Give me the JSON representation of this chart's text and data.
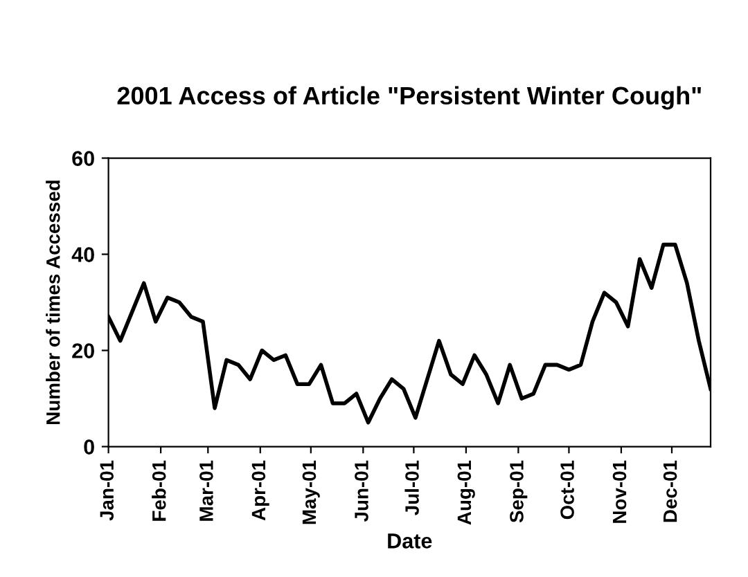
{
  "chart_data": {
    "type": "line",
    "title": "2001 Access of Article \"Persistent Winter Cough\"",
    "xlabel": "Date",
    "ylabel": "Number of times Accessed",
    "x": [
      "2001-01-01",
      "2001-01-08",
      "2001-01-15",
      "2001-01-22",
      "2001-01-29",
      "2001-02-05",
      "2001-02-12",
      "2001-02-19",
      "2001-02-26",
      "2001-03-05",
      "2001-03-12",
      "2001-03-19",
      "2001-03-26",
      "2001-04-02",
      "2001-04-09",
      "2001-04-16",
      "2001-04-23",
      "2001-04-30",
      "2001-05-07",
      "2001-05-14",
      "2001-05-21",
      "2001-05-28",
      "2001-06-04",
      "2001-06-11",
      "2001-06-18",
      "2001-06-25",
      "2001-07-02",
      "2001-07-09",
      "2001-07-16",
      "2001-07-23",
      "2001-07-30",
      "2001-08-06",
      "2001-08-13",
      "2001-08-20",
      "2001-08-27",
      "2001-09-03",
      "2001-09-10",
      "2001-09-17",
      "2001-09-24",
      "2001-10-01",
      "2001-10-08",
      "2001-10-15",
      "2001-10-22",
      "2001-10-29",
      "2001-11-05",
      "2001-11-12",
      "2001-11-19",
      "2001-11-26",
      "2001-12-03",
      "2001-12-10",
      "2001-12-17",
      "2001-12-24"
    ],
    "series": [
      {
        "color": "#000000",
        "values": [
          27,
          22,
          28,
          34,
          26,
          31,
          30,
          27,
          26,
          8,
          18,
          17,
          14,
          20,
          18,
          19,
          13,
          13,
          17,
          9,
          9,
          11,
          5,
          10,
          14,
          12,
          6,
          14,
          22,
          15,
          13,
          19,
          15,
          9,
          17,
          10,
          11,
          17,
          17,
          16,
          17,
          26,
          32,
          30,
          25,
          39,
          33,
          42,
          42,
          34,
          22,
          12
        ]
      }
    ],
    "xlim": [
      "2001-01-01",
      "2001-12-24"
    ],
    "xticks": [
      {
        "value": "2001-01-01",
        "label": "Jan-01"
      },
      {
        "value": "2001-02-01",
        "label": "Feb-01"
      },
      {
        "value": "2001-03-01",
        "label": "Mar-01"
      },
      {
        "value": "2001-04-01",
        "label": "Apr-01"
      },
      {
        "value": "2001-05-01",
        "label": "May-01"
      },
      {
        "value": "2001-06-01",
        "label": "Jun-01"
      },
      {
        "value": "2001-07-01",
        "label": "Jul-01"
      },
      {
        "value": "2001-08-01",
        "label": "Aug-01"
      },
      {
        "value": "2001-09-01",
        "label": "Sep-01"
      },
      {
        "value": "2001-10-01",
        "label": "Oct-01"
      },
      {
        "value": "2001-11-01",
        "label": "Nov-01"
      },
      {
        "value": "2001-12-01",
        "label": "Dec-01"
      }
    ],
    "ylim": [
      0,
      60
    ],
    "yticks": [
      0,
      20,
      40,
      60
    ],
    "grid": false,
    "legend": false,
    "marker": "none",
    "line_style": "solid"
  }
}
